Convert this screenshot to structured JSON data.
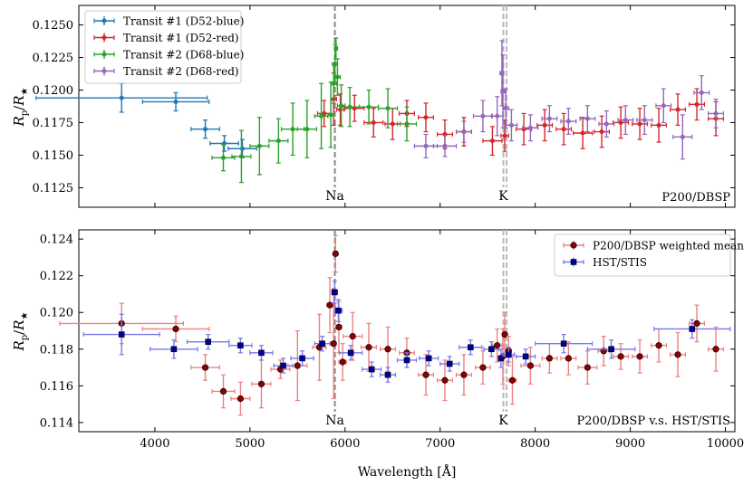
{
  "colors": {
    "blue": "#1f77b4",
    "red": "#d62728",
    "green": "#2ca02c",
    "purple": "#9467bd",
    "dark_red": "#8b0000",
    "navy": "#00009c",
    "line_gray": "#888888",
    "line_lightgray": "#bbbbbb",
    "err_red": "#ee8080",
    "err_blue": "#7878ee"
  },
  "chart_data": [
    {
      "type": "scatter",
      "xlim": [
        3200,
        10100
      ],
      "ylim": [
        0.111,
        0.1265
      ],
      "ylabel": "R_p/R_★",
      "yticks": [
        "0.1125",
        "0.1150",
        "0.1175",
        "0.1200",
        "0.1225",
        "0.1250"
      ],
      "ytick_values": [
        0.1125,
        0.115,
        0.1175,
        0.12,
        0.1225,
        0.125
      ],
      "panel_label": "P200/DBSP",
      "lines": [
        {
          "label": "Na",
          "x": 5893,
          "style": "dark"
        },
        {
          "label": "K",
          "x": 7665,
          "style": "light"
        },
        {
          "label": "",
          "x": 7699,
          "style": "light"
        }
      ],
      "legend_position": "top-left",
      "series": [
        {
          "name": "Transit #1 (D52-blue)",
          "color": "blue",
          "points": [
            [
              3650,
              0.1194,
              900,
              0.0011
            ],
            [
              4220,
              0.1191,
              350,
              0.0007
            ],
            [
              4530,
              0.117,
              150,
              0.0007
            ],
            [
              4730,
              0.1159,
              150,
              0.0006
            ],
            [
              4920,
              0.1155,
              150,
              0.0007
            ]
          ]
        },
        {
          "name": "Transit #1 (D52-red)",
          "color": "red",
          "points": [
            [
              5780,
              0.1182,
              70,
              0.001
            ],
            [
              5880,
              0.1193,
              30,
              0.002
            ],
            [
              5950,
              0.1185,
              40,
              0.0012
            ],
            [
              6100,
              0.1186,
              100,
              0.001
            ],
            [
              6300,
              0.1175,
              100,
              0.0011
            ],
            [
              6500,
              0.1174,
              80,
              0.0012
            ],
            [
              6650,
              0.1182,
              80,
              0.001
            ],
            [
              6850,
              0.1179,
              80,
              0.0011
            ],
            [
              7050,
              0.1166,
              80,
              0.0011
            ],
            [
              7250,
              0.1168,
              80,
              0.0011
            ],
            [
              7550,
              0.1161,
              100,
              0.0011
            ],
            [
              7680,
              0.1165,
              40,
              0.0012
            ],
            [
              7880,
              0.117,
              80,
              0.0012
            ],
            [
              8100,
              0.1173,
              80,
              0.0012
            ],
            [
              8300,
              0.117,
              80,
              0.0012
            ],
            [
              8500,
              0.1167,
              100,
              0.0012
            ],
            [
              8700,
              0.1168,
              80,
              0.0012
            ],
            [
              8900,
              0.1175,
              80,
              0.0012
            ],
            [
              9100,
              0.1174,
              80,
              0.0012
            ],
            [
              9300,
              0.1173,
              80,
              0.0013
            ],
            [
              9500,
              0.1185,
              80,
              0.0012
            ],
            [
              9700,
              0.1189,
              80,
              0.0012
            ],
            [
              9900,
              0.1178,
              80,
              0.0013
            ]
          ]
        },
        {
          "name": "Transit #2 (D68-blue)",
          "color": "green",
          "points": [
            [
              4720,
              0.1148,
              120,
              0.001
            ],
            [
              4910,
              0.1149,
              100,
              0.002
            ],
            [
              5100,
              0.1157,
              100,
              0.0022
            ],
            [
              5300,
              0.1161,
              100,
              0.0017
            ],
            [
              5450,
              0.117,
              120,
              0.002
            ],
            [
              5600,
              0.117,
              100,
              0.0022
            ],
            [
              5750,
              0.118,
              70,
              0.0025
            ],
            [
              5850,
              0.1181,
              30,
              0.0025
            ],
            [
              5880,
              0.1205,
              30,
              0.0015
            ],
            [
              5895,
              0.122,
              25,
              0.0015
            ],
            [
              5905,
              0.1232,
              15,
              0.0008
            ],
            [
              5920,
              0.121,
              30,
              0.0014
            ],
            [
              5960,
              0.1188,
              40,
              0.0016
            ],
            [
              6050,
              0.1187,
              100,
              0.0015
            ],
            [
              6250,
              0.1187,
              100,
              0.0013
            ],
            [
              6450,
              0.1186,
              100,
              0.0015
            ],
            [
              6650,
              0.1174,
              100,
              0.0013
            ]
          ]
        },
        {
          "name": "Transit #2 (D68-red)",
          "color": "purple",
          "points": [
            [
              6850,
              0.1157,
              120,
              0.0009
            ],
            [
              7050,
              0.1157,
              120,
              0.0008
            ],
            [
              7250,
              0.1168,
              80,
              0.0008
            ],
            [
              7450,
              0.118,
              100,
              0.0012
            ],
            [
              7600,
              0.118,
              60,
              0.0015
            ],
            [
              7650,
              0.1213,
              20,
              0.0025
            ],
            [
              7660,
              0.1199,
              20,
              0.0028
            ],
            [
              7690,
              0.1186,
              30,
              0.0015
            ],
            [
              7750,
              0.1173,
              60,
              0.0012
            ],
            [
              7950,
              0.1171,
              80,
              0.001
            ],
            [
              8150,
              0.1178,
              80,
              0.001
            ],
            [
              8350,
              0.1176,
              80,
              0.001
            ],
            [
              8550,
              0.1178,
              80,
              0.001
            ],
            [
              8750,
              0.1174,
              80,
              0.001
            ],
            [
              8950,
              0.1177,
              80,
              0.0011
            ],
            [
              9150,
              0.1177,
              80,
              0.0011
            ],
            [
              9350,
              0.1188,
              80,
              0.0013
            ],
            [
              9550,
              0.1164,
              100,
              0.0017
            ],
            [
              9750,
              0.1198,
              80,
              0.0013
            ],
            [
              9900,
              0.1182,
              80,
              0.0011
            ]
          ]
        }
      ]
    },
    {
      "type": "scatter",
      "xlim": [
        3200,
        10100
      ],
      "ylim": [
        0.1135,
        0.1245
      ],
      "xlabel": "Wavelength [Å]",
      "ylabel": "R_p/R_★",
      "xticks": [
        "4000",
        "5000",
        "6000",
        "7000",
        "8000",
        "9000",
        "10000"
      ],
      "xtick_values": [
        4000,
        5000,
        6000,
        7000,
        8000,
        9000,
        10000
      ],
      "yticks": [
        "0.114",
        "0.116",
        "0.118",
        "0.120",
        "0.122",
        "0.124"
      ],
      "ytick_values": [
        0.114,
        0.116,
        0.118,
        0.12,
        0.122,
        0.124
      ],
      "panel_label": "P200/DBSP v.s. HST/STIS",
      "lines": [
        {
          "label": "Na",
          "x": 5893,
          "style": "dark"
        },
        {
          "label": "K",
          "x": 7665,
          "style": "light"
        },
        {
          "label": "",
          "x": 7699,
          "style": "light"
        }
      ],
      "legend_position": "top-right",
      "series": [
        {
          "name": "P200/DBSP weighted mean",
          "color": "dark_red",
          "errcolor": "err_red",
          "marker": "circle",
          "points": [
            [
              3650,
              0.1194,
              650,
              0.0011
            ],
            [
              4220,
              0.1191,
              350,
              0.0007
            ],
            [
              4530,
              0.117,
              150,
              0.0007
            ],
            [
              4720,
              0.1157,
              120,
              0.0009
            ],
            [
              4900,
              0.1153,
              100,
              0.0009
            ],
            [
              5120,
              0.1161,
              100,
              0.0013
            ],
            [
              5320,
              0.1169,
              100,
              0.0005
            ],
            [
              5500,
              0.1171,
              100,
              0.0019
            ],
            [
              5730,
              0.1181,
              70,
              0.0018
            ],
            [
              5840,
              0.1204,
              30,
              0.0015
            ],
            [
              5880,
              0.1183,
              25,
              0.003
            ],
            [
              5900,
              0.1232,
              15,
              0.001
            ],
            [
              5935,
              0.1192,
              30,
              0.0014
            ],
            [
              5975,
              0.1173,
              40,
              0.001
            ],
            [
              6080,
              0.1187,
              100,
              0.0013
            ],
            [
              6250,
              0.1181,
              80,
              0.0013
            ],
            [
              6450,
              0.118,
              80,
              0.0012
            ],
            [
              6650,
              0.1178,
              80,
              0.0008
            ],
            [
              6850,
              0.1166,
              80,
              0.0011
            ],
            [
              7050,
              0.1163,
              80,
              0.0011
            ],
            [
              7250,
              0.1166,
              80,
              0.0011
            ],
            [
              7450,
              0.117,
              80,
              0.0009
            ],
            [
              7600,
              0.1182,
              50,
              0.0009
            ],
            [
              7660,
              0.1176,
              20,
              0.0015
            ],
            [
              7680,
              0.1188,
              20,
              0.0012
            ],
            [
              7720,
              0.1179,
              30,
              0.0008
            ],
            [
              7760,
              0.1163,
              40,
              0.0013
            ],
            [
              7950,
              0.1171,
              100,
              0.001
            ],
            [
              8150,
              0.1175,
              80,
              0.0008
            ],
            [
              8350,
              0.1175,
              80,
              0.0009
            ],
            [
              8550,
              0.117,
              100,
              0.0009
            ],
            [
              8720,
              0.1179,
              60,
              0.0008
            ],
            [
              8900,
              0.1176,
              80,
              0.0007
            ],
            [
              9100,
              0.1176,
              80,
              0.0009
            ],
            [
              9300,
              0.1182,
              80,
              0.0009
            ],
            [
              9500,
              0.1177,
              80,
              0.0012
            ],
            [
              9700,
              0.1194,
              80,
              0.001
            ],
            [
              9900,
              0.118,
              80,
              0.0012
            ]
          ]
        },
        {
          "name": "HST/STIS",
          "color": "navy",
          "errcolor": "err_blue",
          "marker": "square",
          "points": [
            [
              3650,
              0.1188,
              400,
              0.0011
            ],
            [
              4200,
              0.118,
              250,
              0.0005
            ],
            [
              4560,
              0.1184,
              220,
              0.0004
            ],
            [
              4900,
              0.1182,
              120,
              0.0004
            ],
            [
              5120,
              0.1178,
              120,
              0.0004
            ],
            [
              5350,
              0.1171,
              100,
              0.0004
            ],
            [
              5550,
              0.1175,
              120,
              0.0004
            ],
            [
              5760,
              0.1183,
              80,
              0.0004
            ],
            [
              5890,
              0.1211,
              30,
              0.0006
            ],
            [
              5930,
              0.1201,
              40,
              0.0006
            ],
            [
              6060,
              0.1178,
              120,
              0.0004
            ],
            [
              6280,
              0.1169,
              100,
              0.0004
            ],
            [
              6450,
              0.1166,
              80,
              0.0004
            ],
            [
              6650,
              0.1174,
              100,
              0.0004
            ],
            [
              6880,
              0.1175,
              100,
              0.0004
            ],
            [
              7100,
              0.1172,
              100,
              0.0004
            ],
            [
              7320,
              0.1181,
              120,
              0.0004
            ],
            [
              7540,
              0.118,
              80,
              0.0004
            ],
            [
              7640,
              0.1175,
              20,
              0.0005
            ],
            [
              7720,
              0.1177,
              60,
              0.0004
            ],
            [
              7900,
              0.1176,
              100,
              0.0004
            ],
            [
              8300,
              0.1183,
              300,
              0.0005
            ],
            [
              8800,
              0.118,
              250,
              0.0005
            ],
            [
              9650,
              0.1191,
              400,
              0.0005
            ]
          ]
        }
      ]
    }
  ]
}
